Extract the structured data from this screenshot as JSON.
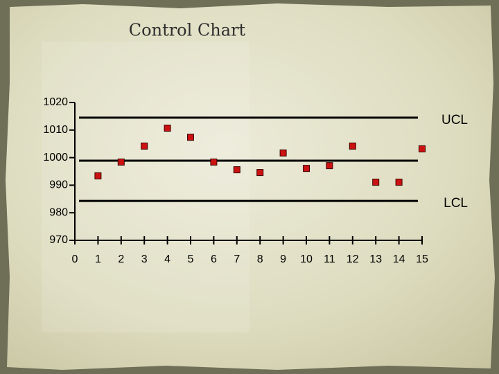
{
  "chart_data": {
    "type": "scatter",
    "title": "Control Chart",
    "x": [
      1,
      2,
      3,
      4,
      5,
      6,
      7,
      8,
      9,
      10,
      11,
      12,
      13,
      14,
      15
    ],
    "series": [
      {
        "color": "#cc1111",
        "values": [
          993.4,
          998.4,
          1004.2,
          1010.7,
          1007.4,
          998.4,
          995.6,
          994.6,
          1001.7,
          996.1,
          997.1,
          1004.2,
          991.1,
          991.1,
          1003.2
        ]
      }
    ],
    "xlim": [
      0,
      15
    ],
    "xticks": [
      0,
      1,
      2,
      3,
      4,
      5,
      6,
      7,
      8,
      9,
      10,
      11,
      12,
      13,
      14,
      15
    ],
    "ylim": [
      970,
      1020
    ],
    "yticks": [
      970,
      980,
      990,
      1000,
      1010,
      1020
    ],
    "control_lines": [
      {
        "label": "UCL",
        "value": 1014.5
      },
      {
        "value": 998.9
      },
      {
        "label": "LCL",
        "value": 984.3
      }
    ]
  }
}
